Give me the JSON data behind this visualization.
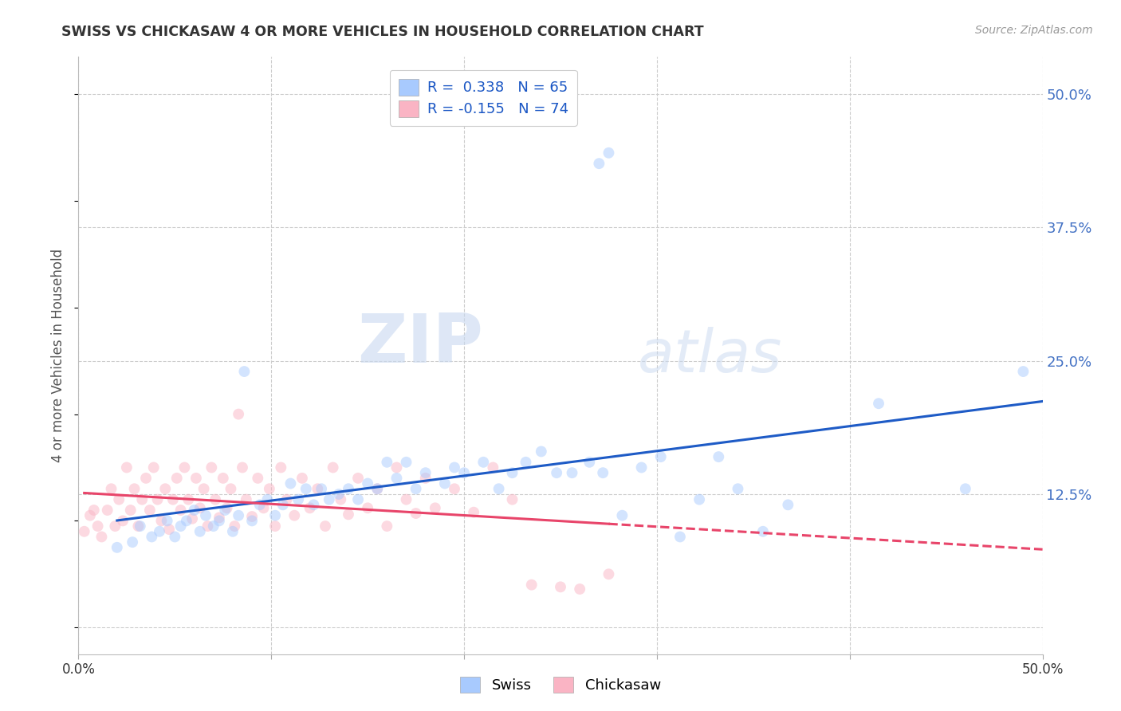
{
  "title": "SWISS VS CHICKASAW 4 OR MORE VEHICLES IN HOUSEHOLD CORRELATION CHART",
  "source": "Source: ZipAtlas.com",
  "ylabel": "4 or more Vehicles in Household",
  "xlim": [
    0.0,
    0.5
  ],
  "ylim": [
    -0.025,
    0.535
  ],
  "ytick_positions": [
    0.0,
    0.125,
    0.25,
    0.375,
    0.5
  ],
  "yticklabels": [
    "",
    "12.5%",
    "25.0%",
    "37.5%",
    "50.0%"
  ],
  "swiss_color": "#A8CAFE",
  "chickasaw_color": "#FAB4C4",
  "swiss_line_color": "#1E5BC6",
  "chickasaw_line_color": "#E8456A",
  "swiss_R": 0.338,
  "swiss_N": 65,
  "chickasaw_R": -0.155,
  "chickasaw_N": 74,
  "legend_label_swiss": "Swiss",
  "legend_label_chickasaw": "Chickasaw",
  "watermark": "ZIPatlas",
  "swiss_x": [
    0.02,
    0.028,
    0.032,
    0.038,
    0.042,
    0.046,
    0.05,
    0.053,
    0.056,
    0.06,
    0.063,
    0.066,
    0.07,
    0.073,
    0.076,
    0.08,
    0.083,
    0.086,
    0.09,
    0.094,
    0.098,
    0.102,
    0.106,
    0.11,
    0.114,
    0.118,
    0.122,
    0.126,
    0.13,
    0.135,
    0.14,
    0.145,
    0.15,
    0.155,
    0.16,
    0.165,
    0.17,
    0.175,
    0.18,
    0.19,
    0.195,
    0.2,
    0.21,
    0.218,
    0.225,
    0.232,
    0.24,
    0.248,
    0.256,
    0.265,
    0.272,
    0.282,
    0.292,
    0.302,
    0.312,
    0.322,
    0.332,
    0.342,
    0.355,
    0.368,
    0.27,
    0.275,
    0.415,
    0.46,
    0.49
  ],
  "swiss_y": [
    0.075,
    0.08,
    0.095,
    0.085,
    0.09,
    0.1,
    0.085,
    0.095,
    0.1,
    0.11,
    0.09,
    0.105,
    0.095,
    0.1,
    0.11,
    0.09,
    0.105,
    0.24,
    0.1,
    0.115,
    0.12,
    0.105,
    0.115,
    0.135,
    0.12,
    0.13,
    0.115,
    0.13,
    0.12,
    0.125,
    0.13,
    0.12,
    0.135,
    0.13,
    0.155,
    0.14,
    0.155,
    0.13,
    0.145,
    0.135,
    0.15,
    0.145,
    0.155,
    0.13,
    0.145,
    0.155,
    0.165,
    0.145,
    0.145,
    0.155,
    0.145,
    0.105,
    0.15,
    0.16,
    0.085,
    0.12,
    0.16,
    0.13,
    0.09,
    0.115,
    0.435,
    0.445,
    0.21,
    0.13,
    0.24
  ],
  "chickasaw_x": [
    0.003,
    0.006,
    0.008,
    0.01,
    0.012,
    0.015,
    0.017,
    0.019,
    0.021,
    0.023,
    0.025,
    0.027,
    0.029,
    0.031,
    0.033,
    0.035,
    0.037,
    0.039,
    0.041,
    0.043,
    0.045,
    0.047,
    0.049,
    0.051,
    0.053,
    0.055,
    0.057,
    0.059,
    0.061,
    0.063,
    0.065,
    0.067,
    0.069,
    0.071,
    0.073,
    0.075,
    0.077,
    0.079,
    0.081,
    0.083,
    0.085,
    0.087,
    0.09,
    0.093,
    0.096,
    0.099,
    0.102,
    0.105,
    0.108,
    0.112,
    0.116,
    0.12,
    0.124,
    0.128,
    0.132,
    0.136,
    0.14,
    0.145,
    0.15,
    0.155,
    0.16,
    0.165,
    0.17,
    0.175,
    0.18,
    0.185,
    0.195,
    0.205,
    0.215,
    0.225,
    0.235,
    0.25,
    0.26,
    0.275
  ],
  "chickasaw_y": [
    0.09,
    0.105,
    0.11,
    0.095,
    0.085,
    0.11,
    0.13,
    0.095,
    0.12,
    0.1,
    0.15,
    0.11,
    0.13,
    0.095,
    0.12,
    0.14,
    0.11,
    0.15,
    0.12,
    0.1,
    0.13,
    0.092,
    0.12,
    0.14,
    0.11,
    0.15,
    0.12,
    0.102,
    0.14,
    0.112,
    0.13,
    0.095,
    0.15,
    0.12,
    0.103,
    0.14,
    0.112,
    0.13,
    0.095,
    0.2,
    0.15,
    0.12,
    0.104,
    0.14,
    0.112,
    0.13,
    0.095,
    0.15,
    0.12,
    0.105,
    0.14,
    0.112,
    0.13,
    0.095,
    0.15,
    0.12,
    0.106,
    0.14,
    0.112,
    0.13,
    0.095,
    0.15,
    0.12,
    0.107,
    0.14,
    0.112,
    0.13,
    0.108,
    0.15,
    0.12,
    0.04,
    0.038,
    0.036,
    0.05
  ],
  "background_color": "#FFFFFF",
  "grid_color": "#CCCCCC",
  "title_color": "#333333",
  "axis_label_color": "#555555",
  "tick_label_color_right": "#4472C4",
  "marker_size": 100,
  "marker_alpha": 0.5,
  "line_width": 2.2
}
